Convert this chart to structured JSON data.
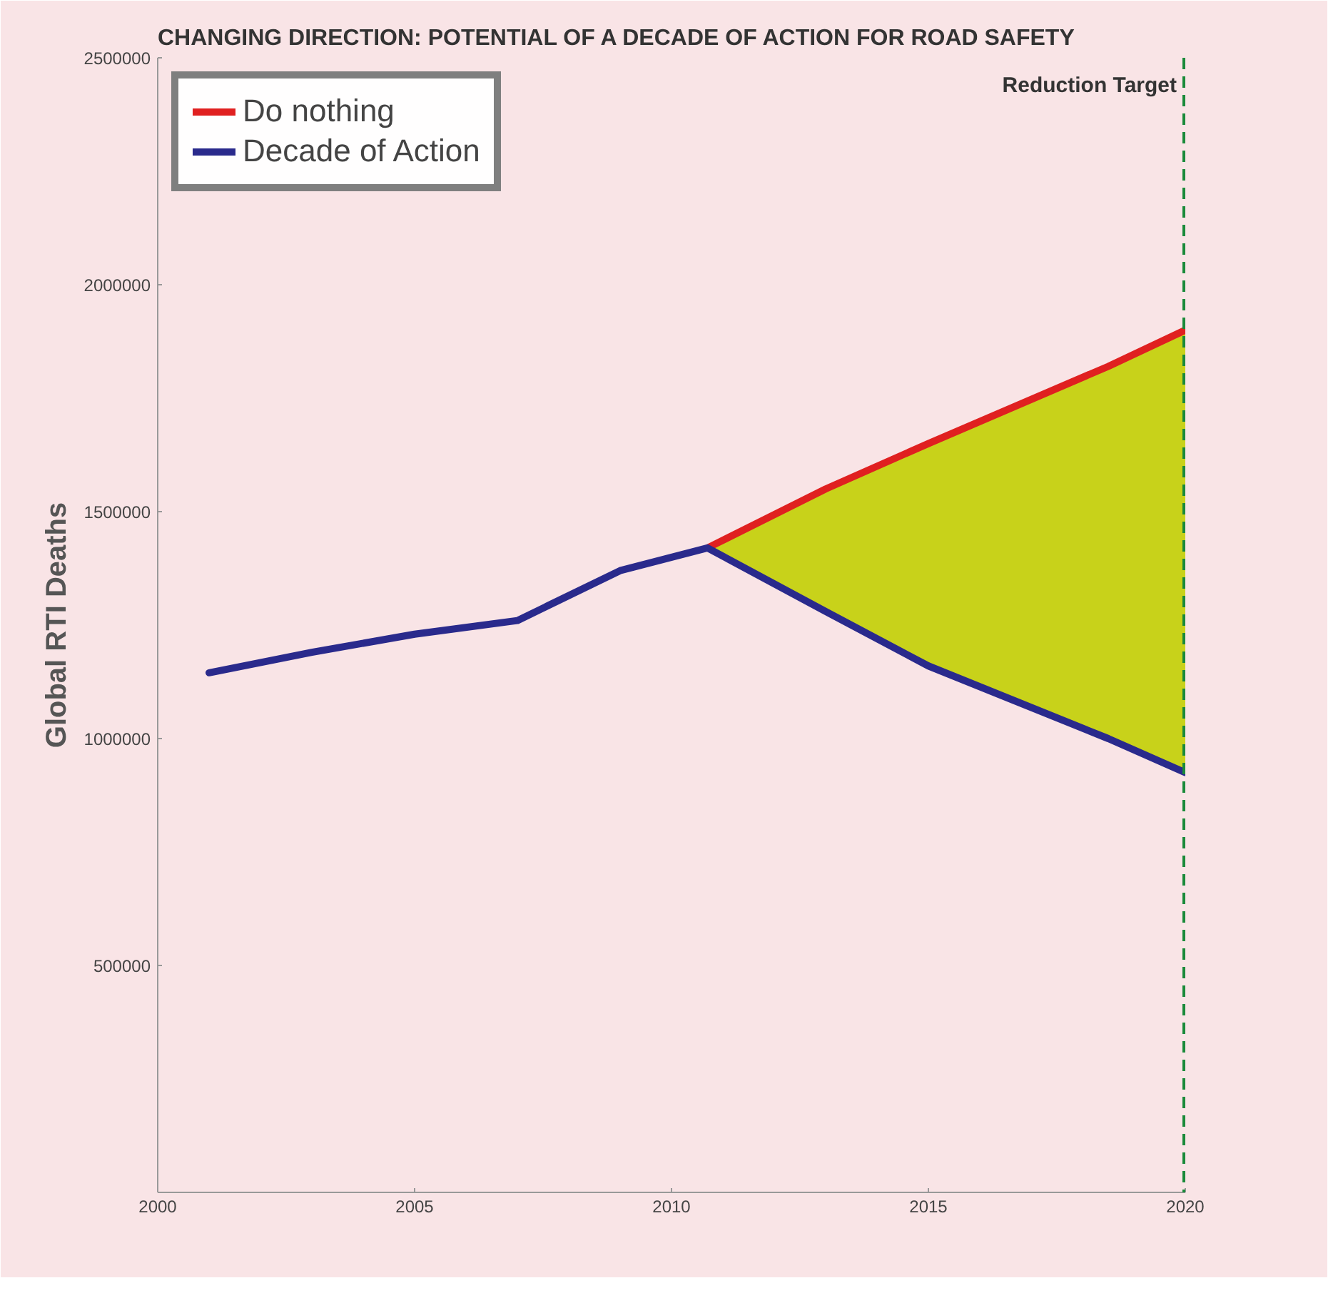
{
  "chart_data": {
    "type": "line",
    "title": "CHANGING DIRECTION: POTENTIAL OF A DECADE OF ACTION FOR ROAD SAFETY",
    "ylabel": "Global RTI Deaths",
    "xlim": [
      2000,
      2020
    ],
    "xticks": [
      2000,
      2005,
      2010,
      2015,
      2020
    ],
    "ylim": [
      0,
      2500000
    ],
    "yticks": [
      {
        "value": 0,
        "label": null
      },
      500000,
      1000000,
      1500000,
      2000000,
      2500000
    ],
    "series": [
      {
        "name": "Do nothing",
        "color": "#e02020",
        "x": [
          2010.7,
          2013,
          2015,
          2018.5,
          2020
        ],
        "values": [
          1420000,
          1550000,
          1650000,
          1820000,
          1900000
        ],
        "lower": [
          1420000,
          1280000,
          1160000,
          1000000,
          925000
        ],
        "upper": [
          1420000,
          1550000,
          1650000,
          1820000,
          1900000
        ]
      },
      {
        "name": "Decade of Action",
        "color": "#2a2a8c",
        "x": [
          2001,
          2003,
          2005,
          2007,
          2009,
          2010.7,
          2013,
          2015,
          2018.5,
          2020
        ],
        "values": [
          1145000,
          1190000,
          1230000,
          1260000,
          1370000,
          1420000,
          1280000,
          1160000,
          1000000,
          925000
        ]
      }
    ],
    "ref_lines": [
      {
        "axis": "x",
        "value": 2020,
        "label": "Reduction Target",
        "color": "#1a8a3a",
        "line_style": "dashed"
      }
    ],
    "legend": "top left",
    "grid": false,
    "line_style": "solid",
    "marker": "none"
  }
}
